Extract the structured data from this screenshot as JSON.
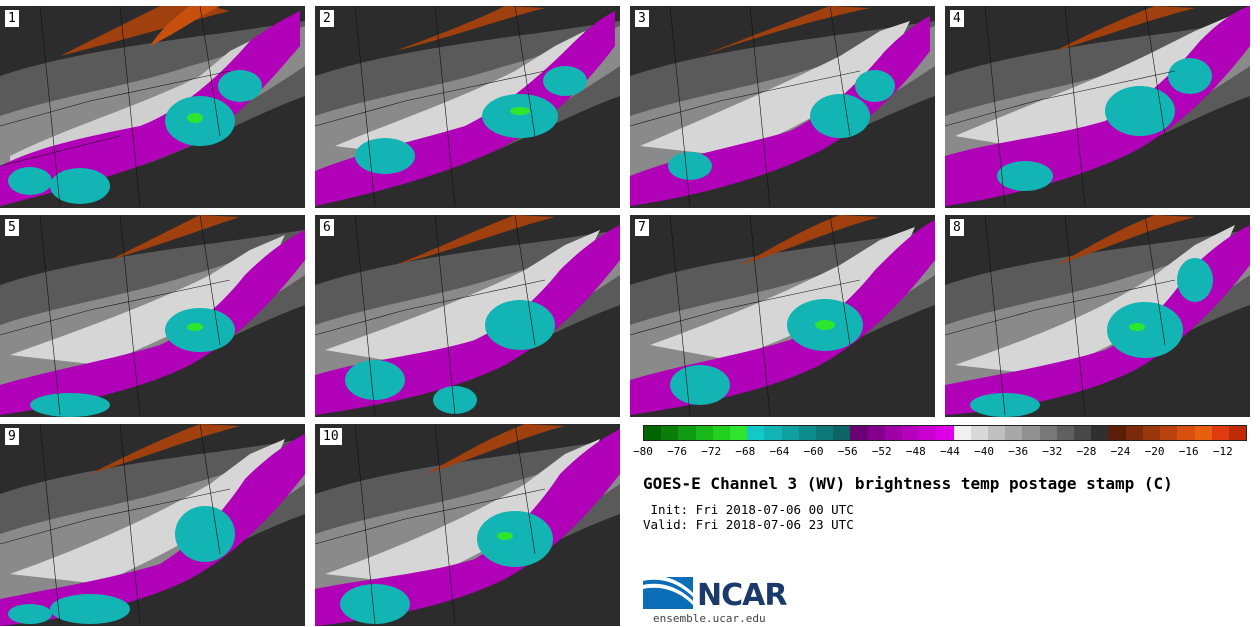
{
  "panels": [
    {
      "label": "1"
    },
    {
      "label": "2"
    },
    {
      "label": "3"
    },
    {
      "label": "4"
    },
    {
      "label": "5"
    },
    {
      "label": "6"
    },
    {
      "label": "7"
    },
    {
      "label": "8"
    },
    {
      "label": "9"
    },
    {
      "label": "10"
    }
  ],
  "colorbar": {
    "colors": [
      "#006400",
      "#0a7d0a",
      "#109c10",
      "#18b818",
      "#22d022",
      "#2fe62f",
      "#12c8c8",
      "#10b4b4",
      "#0fa0a0",
      "#0e8c8c",
      "#0d7878",
      "#0c6464",
      "#6a0072",
      "#84008c",
      "#9e00a6",
      "#b400bc",
      "#c900d0",
      "#de00e6",
      "#f0f0f0",
      "#d8d8d8",
      "#c0c0c0",
      "#a8a8a8",
      "#909090",
      "#787878",
      "#606060",
      "#484848",
      "#303030",
      "#5a1e08",
      "#7a2a0a",
      "#9a360c",
      "#ba420e",
      "#d85010",
      "#e66010",
      "#e03a10",
      "#c02a08"
    ],
    "tick_labels": [
      "−80",
      "−76",
      "−72",
      "−68",
      "−64",
      "−60",
      "−56",
      "−52",
      "−48",
      "−44",
      "−40",
      "−36",
      "−32",
      "−28",
      "−24",
      "−20",
      "−16",
      "−12"
    ]
  },
  "title": "GOES-E Channel 3 (WV) brightness temp postage stamp (C)",
  "init_line": " Init: Fri 2018-07-06 00 UTC",
  "valid_line": "Valid: Fri 2018-07-06 23 UTC",
  "logo": {
    "text": "NCAR",
    "url": "ensemble.ucar.edu"
  }
}
